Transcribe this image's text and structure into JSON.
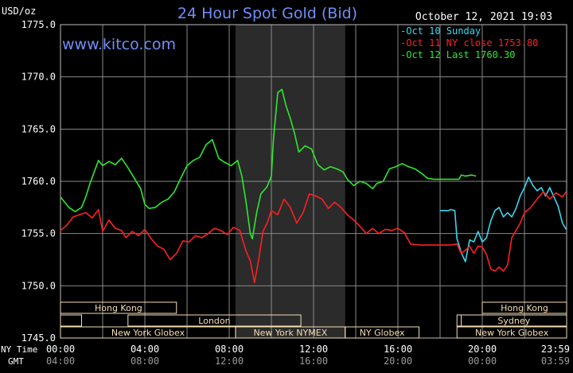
{
  "chart_data": {
    "type": "line",
    "title": "24 Hour Spot Gold (Bid)",
    "watermark": "www.kitco.com",
    "datetime": "October 12, 2021 19:03",
    "unit": "USD/oz",
    "ylim": [
      1745,
      1775
    ],
    "y_ticks": [
      "1775.0",
      "1770.0",
      "1765.0",
      "1760.0",
      "1755.0",
      "1750.0",
      "1745.0"
    ],
    "y_tick_values": [
      1775,
      1770,
      1765,
      1760,
      1755,
      1750,
      1745
    ],
    "xlim": [
      0,
      24
    ],
    "x_ticks": [
      0,
      4,
      8,
      12,
      16,
      20,
      23.983
    ],
    "ny_time_label": "NY Time",
    "gmt_label": "GMT",
    "ny_time_ticks": [
      "00:00",
      "04:00",
      "08:00",
      "12:00",
      "16:00",
      "20:00",
      "23:59"
    ],
    "gmt_ticks": [
      "04:00",
      "08:00",
      "12:00",
      "16:00",
      "20:00",
      "00:00",
      "03:59"
    ],
    "highlight_band": [
      8.3,
      13.5
    ],
    "grid": true,
    "legend_placement": "top-right",
    "colors": {
      "background": "#000000",
      "grid": "#888888",
      "axis_text": "#ffffff",
      "title": "#6f8ff7",
      "band": "#2b2b2b",
      "session_box": "#f5deb3",
      "oct10": "#3ad6ee",
      "oct11": "#ff2020",
      "oct12": "#2ee82e"
    },
    "series": [
      {
        "name": "Oct 10 Sunday",
        "color": "#3ad6ee",
        "points": [
          [
            18.0,
            1757.2
          ],
          [
            18.4,
            1757.2
          ],
          [
            18.5,
            1757.3
          ],
          [
            18.7,
            1757.2
          ],
          [
            18.8,
            1754.5
          ],
          [
            19.0,
            1753.2
          ],
          [
            19.2,
            1752.3
          ],
          [
            19.4,
            1754.4
          ],
          [
            19.6,
            1754.2
          ],
          [
            19.8,
            1755.2
          ],
          [
            20.0,
            1754.2
          ],
          [
            20.2,
            1754.6
          ],
          [
            20.4,
            1756.2
          ],
          [
            20.6,
            1757.2
          ],
          [
            20.8,
            1757.5
          ],
          [
            21.0,
            1756.6
          ],
          [
            21.2,
            1757.0
          ],
          [
            21.4,
            1756.6
          ],
          [
            21.6,
            1757.4
          ],
          [
            21.8,
            1758.6
          ],
          [
            22.0,
            1759.4
          ],
          [
            22.2,
            1760.4
          ],
          [
            22.4,
            1759.6
          ],
          [
            22.6,
            1759.1
          ],
          [
            22.8,
            1759.4
          ],
          [
            23.0,
            1758.6
          ],
          [
            23.2,
            1759.4
          ],
          [
            23.4,
            1758.5
          ],
          [
            23.6,
            1757.6
          ],
          [
            23.8,
            1756.0
          ],
          [
            23.98,
            1755.4
          ]
        ]
      },
      {
        "name": "Oct 11 NY close 1753.80",
        "color": "#ff2020",
        "points": [
          [
            0.0,
            1755.3
          ],
          [
            0.3,
            1755.8
          ],
          [
            0.6,
            1756.6
          ],
          [
            0.9,
            1756.8
          ],
          [
            1.2,
            1757.0
          ],
          [
            1.5,
            1756.5
          ],
          [
            1.8,
            1757.3
          ],
          [
            2.0,
            1755.2
          ],
          [
            2.3,
            1756.3
          ],
          [
            2.6,
            1755.5
          ],
          [
            2.9,
            1755.3
          ],
          [
            3.1,
            1754.6
          ],
          [
            3.4,
            1755.2
          ],
          [
            3.7,
            1754.8
          ],
          [
            4.0,
            1755.4
          ],
          [
            4.3,
            1754.5
          ],
          [
            4.6,
            1753.8
          ],
          [
            4.9,
            1753.5
          ],
          [
            5.2,
            1752.5
          ],
          [
            5.5,
            1753.1
          ],
          [
            5.8,
            1754.3
          ],
          [
            6.1,
            1754.2
          ],
          [
            6.4,
            1754.8
          ],
          [
            6.7,
            1754.6
          ],
          [
            7.0,
            1755.0
          ],
          [
            7.3,
            1755.5
          ],
          [
            7.6,
            1755.3
          ],
          [
            7.9,
            1754.9
          ],
          [
            8.2,
            1755.6
          ],
          [
            8.5,
            1755.3
          ],
          [
            8.8,
            1753.3
          ],
          [
            9.0,
            1752.4
          ],
          [
            9.2,
            1750.3
          ],
          [
            9.4,
            1752.5
          ],
          [
            9.6,
            1755.2
          ],
          [
            9.8,
            1756.0
          ],
          [
            10.0,
            1757.2
          ],
          [
            10.3,
            1756.8
          ],
          [
            10.6,
            1758.3
          ],
          [
            10.9,
            1757.5
          ],
          [
            11.2,
            1756.0
          ],
          [
            11.5,
            1757.0
          ],
          [
            11.8,
            1758.8
          ],
          [
            12.1,
            1758.6
          ],
          [
            12.4,
            1758.3
          ],
          [
            12.7,
            1757.4
          ],
          [
            13.0,
            1758.0
          ],
          [
            13.3,
            1757.5
          ],
          [
            13.6,
            1756.8
          ],
          [
            13.9,
            1756.3
          ],
          [
            14.2,
            1755.7
          ],
          [
            14.5,
            1755.0
          ],
          [
            14.8,
            1755.5
          ],
          [
            15.1,
            1755.0
          ],
          [
            15.4,
            1755.4
          ],
          [
            15.7,
            1755.3
          ],
          [
            16.0,
            1755.5
          ],
          [
            16.3,
            1755.1
          ],
          [
            16.6,
            1754.0
          ],
          [
            17.0,
            1753.9
          ],
          [
            17.5,
            1753.9
          ],
          [
            18.0,
            1753.9
          ],
          [
            18.5,
            1753.9
          ],
          [
            18.8,
            1754.0
          ],
          [
            19.0,
            1753.1
          ],
          [
            19.2,
            1753.4
          ],
          [
            19.4,
            1753.8
          ],
          [
            19.6,
            1753.1
          ],
          [
            19.8,
            1753.8
          ],
          [
            20.0,
            1753.7
          ],
          [
            20.2,
            1753.0
          ],
          [
            20.4,
            1751.6
          ],
          [
            20.6,
            1751.4
          ],
          [
            20.8,
            1751.8
          ],
          [
            21.0,
            1751.4
          ],
          [
            21.2,
            1752.0
          ],
          [
            21.4,
            1754.6
          ],
          [
            21.6,
            1755.3
          ],
          [
            21.8,
            1756.0
          ],
          [
            22.0,
            1757.0
          ],
          [
            22.3,
            1757.5
          ],
          [
            22.6,
            1758.3
          ],
          [
            22.9,
            1759.0
          ],
          [
            23.2,
            1758.3
          ],
          [
            23.5,
            1758.9
          ],
          [
            23.8,
            1758.5
          ],
          [
            23.98,
            1759.0
          ]
        ]
      },
      {
        "name": "Oct 12 Last 1760.30",
        "color": "#2ee82e",
        "points": [
          [
            0.0,
            1758.5
          ],
          [
            0.2,
            1758.0
          ],
          [
            0.4,
            1757.5
          ],
          [
            0.7,
            1757.1
          ],
          [
            1.0,
            1757.5
          ],
          [
            1.2,
            1758.5
          ],
          [
            1.4,
            1759.8
          ],
          [
            1.6,
            1760.9
          ],
          [
            1.8,
            1762.0
          ],
          [
            2.0,
            1761.5
          ],
          [
            2.3,
            1761.9
          ],
          [
            2.6,
            1761.6
          ],
          [
            2.9,
            1762.2
          ],
          [
            3.2,
            1761.3
          ],
          [
            3.5,
            1760.3
          ],
          [
            3.8,
            1759.3
          ],
          [
            4.0,
            1757.8
          ],
          [
            4.2,
            1757.4
          ],
          [
            4.5,
            1757.5
          ],
          [
            4.8,
            1758.0
          ],
          [
            5.1,
            1758.3
          ],
          [
            5.4,
            1759.0
          ],
          [
            5.7,
            1760.3
          ],
          [
            6.0,
            1761.5
          ],
          [
            6.3,
            1762.0
          ],
          [
            6.6,
            1762.3
          ],
          [
            6.9,
            1763.5
          ],
          [
            7.2,
            1764.0
          ],
          [
            7.5,
            1762.2
          ],
          [
            7.8,
            1761.8
          ],
          [
            8.1,
            1761.5
          ],
          [
            8.4,
            1762.0
          ],
          [
            8.6,
            1760.5
          ],
          [
            8.8,
            1758.0
          ],
          [
            9.0,
            1755.0
          ],
          [
            9.1,
            1754.5
          ],
          [
            9.3,
            1757.0
          ],
          [
            9.5,
            1758.8
          ],
          [
            9.8,
            1759.5
          ],
          [
            10.0,
            1760.5
          ],
          [
            10.1,
            1764.0
          ],
          [
            10.3,
            1768.5
          ],
          [
            10.5,
            1768.8
          ],
          [
            10.7,
            1767.2
          ],
          [
            10.9,
            1766.0
          ],
          [
            11.1,
            1764.6
          ],
          [
            11.3,
            1762.8
          ],
          [
            11.6,
            1763.4
          ],
          [
            11.9,
            1763.1
          ],
          [
            12.2,
            1761.6
          ],
          [
            12.5,
            1761.1
          ],
          [
            12.8,
            1761.4
          ],
          [
            13.1,
            1761.2
          ],
          [
            13.4,
            1760.9
          ],
          [
            13.6,
            1760.2
          ],
          [
            13.9,
            1759.6
          ],
          [
            14.2,
            1760.0
          ],
          [
            14.5,
            1759.8
          ],
          [
            14.8,
            1759.3
          ],
          [
            15.0,
            1759.8
          ],
          [
            15.3,
            1760.0
          ],
          [
            15.6,
            1761.2
          ],
          [
            15.9,
            1761.4
          ],
          [
            16.2,
            1761.7
          ],
          [
            16.5,
            1761.4
          ],
          [
            16.8,
            1761.2
          ],
          [
            17.1,
            1760.8
          ],
          [
            17.4,
            1760.3
          ],
          [
            17.7,
            1760.2
          ],
          [
            18.0,
            1760.2
          ],
          [
            18.3,
            1760.2
          ],
          [
            18.6,
            1760.2
          ],
          [
            18.9,
            1760.2
          ],
          [
            19.0,
            1760.6
          ],
          [
            19.2,
            1760.5
          ],
          [
            19.5,
            1760.6
          ],
          [
            19.7,
            1760.5
          ]
        ]
      }
    ]
  },
  "sessions": [
    {
      "label": "Hong Kong",
      "row": 0,
      "start": 0.0,
      "end": 5.5
    },
    {
      "label": "",
      "row": 1,
      "start": 0.0,
      "end": 1.0
    },
    {
      "label": "London",
      "row": 1,
      "start": 3.2,
      "end": 11.4
    },
    {
      "label": "",
      "row": 1,
      "start": 18.8,
      "end": 19.0
    },
    {
      "label": "New York Globex",
      "row": 2,
      "start": 0.0,
      "end": 8.3
    },
    {
      "label": "New York NYMEX",
      "row": 2,
      "start": 8.3,
      "end": 13.5
    },
    {
      "label": "NY Globex",
      "row": 2,
      "start": 13.5,
      "end": 17.0
    },
    {
      "label": "Sydney",
      "row": 1,
      "start": 19.0,
      "end": 24.0
    },
    {
      "label": "Hong Kong",
      "row": 0,
      "start": 20.0,
      "end": 24.0
    },
    {
      "label": "New York Globex",
      "row": 2,
      "start": 18.8,
      "end": 24.0
    }
  ]
}
